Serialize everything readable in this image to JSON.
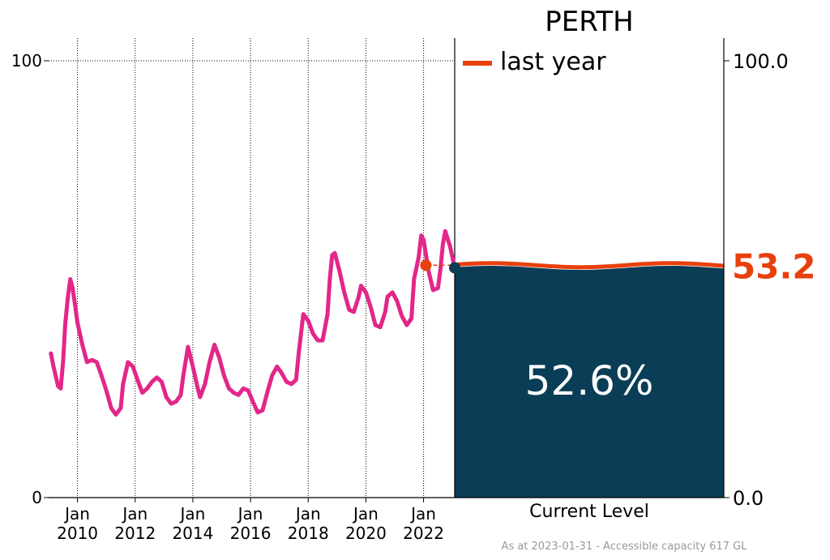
{
  "chart_data": {
    "type": "line",
    "title": "PERTH",
    "left_axis": {
      "ylim": [
        0,
        100
      ],
      "ticks": [
        "0",
        "100"
      ]
    },
    "right_axis": {
      "ylim": [
        0,
        100
      ],
      "ticks": [
        "0.0",
        "100.0"
      ]
    },
    "x_ticks": [
      {
        "label": "Jan\n2010",
        "year": 2010
      },
      {
        "label": "Jan\n2012",
        "year": 2012
      },
      {
        "label": "Jan\n2014",
        "year": 2014
      },
      {
        "label": "Jan\n2016",
        "year": 2016
      },
      {
        "label": "Jan\n2018",
        "year": 2018
      },
      {
        "label": "Jan\n2020",
        "year": 2020
      },
      {
        "label": "Jan\n2022",
        "year": 2022
      }
    ],
    "xlim": [
      2009.0,
      2023.08
    ],
    "grid": "vertical-dotted",
    "series": [
      {
        "color": "#e3268a",
        "points": [
          [
            2009.08,
            33.0
          ],
          [
            2009.17,
            30.0
          ],
          [
            2009.33,
            25.5
          ],
          [
            2009.42,
            25.0
          ],
          [
            2009.5,
            31.0
          ],
          [
            2009.58,
            40.0
          ],
          [
            2009.67,
            46.0
          ],
          [
            2009.75,
            50.0
          ],
          [
            2009.83,
            48.0
          ],
          [
            2009.92,
            44.0
          ],
          [
            2010.0,
            40.0
          ],
          [
            2010.17,
            35.0
          ],
          [
            2010.33,
            31.0
          ],
          [
            2010.5,
            31.5
          ],
          [
            2010.67,
            31.0
          ],
          [
            2010.83,
            28.0
          ],
          [
            2011.0,
            24.5
          ],
          [
            2011.17,
            20.5
          ],
          [
            2011.33,
            19.0
          ],
          [
            2011.5,
            20.5
          ],
          [
            2011.58,
            26.0
          ],
          [
            2011.75,
            31.0
          ],
          [
            2011.92,
            30.0
          ],
          [
            2012.08,
            27.0
          ],
          [
            2012.25,
            24.0
          ],
          [
            2012.42,
            25.0
          ],
          [
            2012.58,
            26.5
          ],
          [
            2012.75,
            27.5
          ],
          [
            2012.92,
            26.5
          ],
          [
            2013.08,
            23.0
          ],
          [
            2013.25,
            21.5
          ],
          [
            2013.42,
            22.0
          ],
          [
            2013.58,
            23.5
          ],
          [
            2013.67,
            28.0
          ],
          [
            2013.83,
            34.5
          ],
          [
            2014.0,
            30.0
          ],
          [
            2014.17,
            25.0
          ],
          [
            2014.25,
            23.0
          ],
          [
            2014.42,
            26.0
          ],
          [
            2014.58,
            31.0
          ],
          [
            2014.75,
            35.0
          ],
          [
            2014.92,
            32.0
          ],
          [
            2015.08,
            28.0
          ],
          [
            2015.25,
            25.0
          ],
          [
            2015.42,
            24.0
          ],
          [
            2015.58,
            23.5
          ],
          [
            2015.75,
            25.0
          ],
          [
            2015.92,
            24.5
          ],
          [
            2016.08,
            22.0
          ],
          [
            2016.25,
            19.5
          ],
          [
            2016.42,
            20.0
          ],
          [
            2016.58,
            24.0
          ],
          [
            2016.75,
            28.0
          ],
          [
            2016.92,
            30.0
          ],
          [
            2017.08,
            28.5
          ],
          [
            2017.25,
            26.5
          ],
          [
            2017.42,
            26.0
          ],
          [
            2017.58,
            27.0
          ],
          [
            2017.67,
            33.0
          ],
          [
            2017.83,
            42.0
          ],
          [
            2018.0,
            40.5
          ],
          [
            2018.17,
            37.5
          ],
          [
            2018.33,
            36.0
          ],
          [
            2018.5,
            36.0
          ],
          [
            2018.67,
            42.0
          ],
          [
            2018.75,
            50.0
          ],
          [
            2018.83,
            55.5
          ],
          [
            2018.92,
            56.0
          ],
          [
            2019.08,
            52.0
          ],
          [
            2019.25,
            47.0
          ],
          [
            2019.42,
            43.0
          ],
          [
            2019.58,
            42.5
          ],
          [
            2019.75,
            46.0
          ],
          [
            2019.83,
            48.5
          ],
          [
            2020.0,
            47.0
          ],
          [
            2020.17,
            43.5
          ],
          [
            2020.33,
            39.5
          ],
          [
            2020.5,
            39.0
          ],
          [
            2020.67,
            42.5
          ],
          [
            2020.75,
            46.0
          ],
          [
            2020.92,
            47.0
          ],
          [
            2021.08,
            45.0
          ],
          [
            2021.25,
            41.5
          ],
          [
            2021.42,
            39.5
          ],
          [
            2021.58,
            41.0
          ],
          [
            2021.67,
            50.0
          ],
          [
            2021.83,
            55.0
          ],
          [
            2021.92,
            60.0
          ],
          [
            2022.0,
            59.0
          ],
          [
            2022.17,
            52.0
          ],
          [
            2022.33,
            47.5
          ],
          [
            2022.5,
            48.0
          ],
          [
            2022.58,
            52.0
          ],
          [
            2022.67,
            58.0
          ],
          [
            2022.75,
            61.0
          ],
          [
            2022.92,
            57.5
          ],
          [
            2023.08,
            52.6
          ]
        ]
      }
    ],
    "last_year_marker": {
      "x": 2022.08,
      "y": 53.2,
      "color": "#e8400c"
    },
    "current_marker": {
      "x": 2023.08,
      "y": 52.6,
      "color": "#0a3d56"
    },
    "legend": {
      "label": "last year",
      "color": "#e8400c",
      "position": "top-left of gauge"
    },
    "gauge": {
      "current_level": 52.6,
      "current_label": "52.6%",
      "fill_color": "#0a3d56",
      "last_year_level": 53.2,
      "last_year_label": "53.2",
      "last_year_color": "#e8400c",
      "xlabel": "Current Level"
    },
    "footnote": "As at 2023-01-31 - Accessible capacity 617 GL"
  }
}
